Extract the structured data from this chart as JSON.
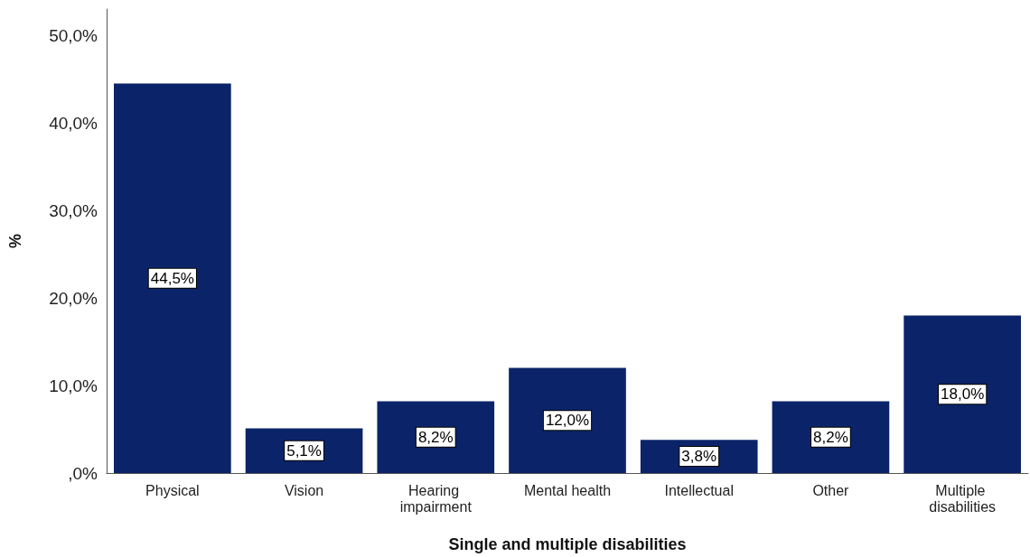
{
  "chart_data": {
    "type": "bar",
    "xlabel": "Single and multiple disabilities",
    "ylabel": "%",
    "categories": [
      "Physical",
      "Vision",
      "Hearing impairment",
      "Mental health",
      "Intellectual",
      "Other",
      "Multiple disabilities"
    ],
    "values": [
      44.5,
      5.1,
      8.2,
      12.0,
      3.8,
      8.2,
      18.0
    ],
    "value_labels": [
      "44,5%",
      "5,1%",
      "8,2%",
      "12,0%",
      "3,8%",
      "8,2%",
      "18,0%"
    ],
    "color": "#0b2469",
    "ylim": [
      0,
      53
    ],
    "yticks": [
      {
        "value": 0,
        "label": ",0%"
      },
      {
        "value": 10,
        "label": "10,0%"
      },
      {
        "value": 20,
        "label": "20,0%"
      },
      {
        "value": 30,
        "label": "30,0%"
      },
      {
        "value": 40,
        "label": "40,0%"
      },
      {
        "value": 50,
        "label": "50,0%"
      }
    ],
    "grid": false
  }
}
